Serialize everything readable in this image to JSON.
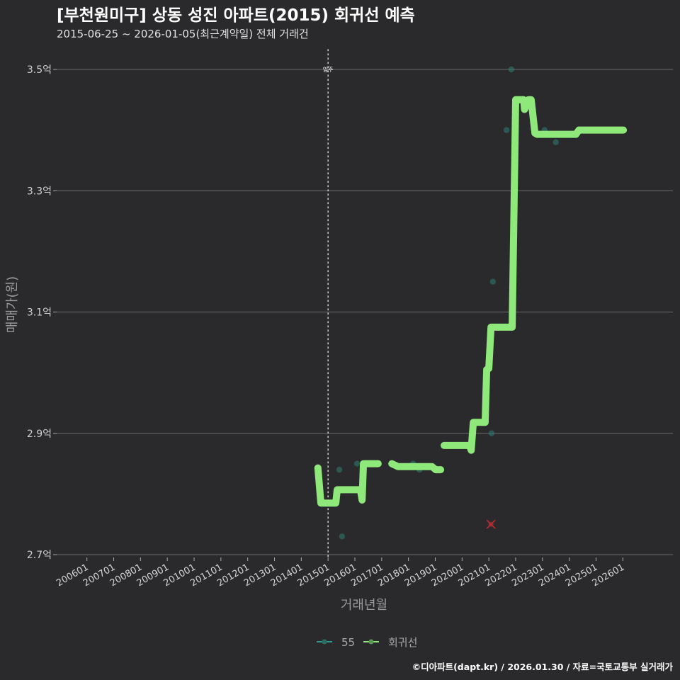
{
  "header": {
    "title": "[부천원미구] 상동 성진 아파트(2015) 회귀선 예측",
    "subtitle": "2015-06-25 ~ 2026-01-05(최근계약일) 전체 거래건"
  },
  "axes": {
    "y_title": "매매가(원)",
    "x_title": "거래년월",
    "y_ticks": [
      {
        "label": "3.5억",
        "value": 3.5
      },
      {
        "label": "3.3억",
        "value": 3.3
      },
      {
        "label": "3.1억",
        "value": 3.1
      },
      {
        "label": "2.9억",
        "value": 2.9
      },
      {
        "label": "2.7억",
        "value": 2.7
      }
    ],
    "x_ticks": [
      "200601",
      "200701",
      "200801",
      "200901",
      "201001",
      "201101",
      "201201",
      "201301",
      "201401",
      "201501",
      "201601",
      "201701",
      "201801",
      "201901",
      "202001",
      "202101",
      "202201",
      "202301",
      "202401",
      "202501",
      "202601"
    ]
  },
  "annotation": {
    "label": "입주",
    "x_year": 2015.0
  },
  "legend": {
    "items": [
      {
        "label": "55",
        "color": "#2f9a90"
      },
      {
        "label": "회귀선",
        "color": "#8ee87a"
      }
    ]
  },
  "caption": "©디아파트(dapt.kr) / 2026.01.30 / 자료=국토교통부 실거래가",
  "colors": {
    "background": "#2a2a2c",
    "regression": "#8ee87a",
    "points": "#2e7d74",
    "outlier": "#c0282d"
  },
  "chart_data": {
    "type": "line",
    "title": "[부천원미구] 상동 성진 아파트(2015) 회귀선 예측",
    "subtitle": "2015-06-25 ~ 2026-01-05(최근계약일) 전체 거래건",
    "xlabel": "거래년월",
    "ylabel": "매매가(원)",
    "xlim": [
      2006.0,
      2026.0
    ],
    "ylim": [
      2.7,
      3.5
    ],
    "y_unit": "억",
    "grid": true,
    "legend_position": "bottom",
    "series": [
      {
        "name": "55",
        "kind": "scatter",
        "points": [
          {
            "x": 2015.42,
            "y": 2.84
          },
          {
            "x": 2015.52,
            "y": 2.73
          },
          {
            "x": 2016.08,
            "y": 2.85
          },
          {
            "x": 2018.17,
            "y": 2.85
          },
          {
            "x": 2018.41,
            "y": 2.84
          },
          {
            "x": 2021.1,
            "y": 2.9
          },
          {
            "x": 2021.15,
            "y": 3.15
          },
          {
            "x": 2021.66,
            "y": 3.4
          },
          {
            "x": 2021.84,
            "y": 3.5
          },
          {
            "x": 2023.08,
            "y": 3.4
          },
          {
            "x": 2023.5,
            "y": 3.38
          }
        ]
      },
      {
        "name": "회귀선",
        "kind": "line",
        "segments": [
          [
            {
              "x": 2014.62,
              "y": 2.843
            },
            {
              "x": 2014.73,
              "y": 2.785
            },
            {
              "x": 2015.29,
              "y": 2.785
            },
            {
              "x": 2015.34,
              "y": 2.807
            },
            {
              "x": 2016.21,
              "y": 2.807
            },
            {
              "x": 2016.27,
              "y": 2.79
            },
            {
              "x": 2016.32,
              "y": 2.85
            },
            {
              "x": 2016.87,
              "y": 2.85
            }
          ],
          [
            {
              "x": 2017.38,
              "y": 2.85
            },
            {
              "x": 2017.61,
              "y": 2.845
            },
            {
              "x": 2018.88,
              "y": 2.845
            },
            {
              "x": 2019.02,
              "y": 2.84
            },
            {
              "x": 2019.2,
              "y": 2.84
            }
          ],
          [
            {
              "x": 2019.33,
              "y": 2.88
            },
            {
              "x": 2020.28,
              "y": 2.88
            },
            {
              "x": 2020.34,
              "y": 2.872
            },
            {
              "x": 2020.42,
              "y": 2.918
            },
            {
              "x": 2020.86,
              "y": 2.918
            },
            {
              "x": 2020.92,
              "y": 3.005
            },
            {
              "x": 2021.0,
              "y": 3.007
            },
            {
              "x": 2021.08,
              "y": 3.075
            },
            {
              "x": 2021.87,
              "y": 3.075
            },
            {
              "x": 2022.0,
              "y": 3.45
            },
            {
              "x": 2022.3,
              "y": 3.45
            },
            {
              "x": 2022.33,
              "y": 3.434
            },
            {
              "x": 2022.48,
              "y": 3.45
            },
            {
              "x": 2022.58,
              "y": 3.45
            },
            {
              "x": 2022.72,
              "y": 3.395
            },
            {
              "x": 2022.8,
              "y": 3.393
            },
            {
              "x": 2024.25,
              "y": 3.393
            },
            {
              "x": 2024.36,
              "y": 3.4
            },
            {
              "x": 2026.02,
              "y": 3.4
            }
          ]
        ]
      },
      {
        "name": "outlier",
        "kind": "marker-x",
        "points": [
          {
            "x": 2021.08,
            "y": 2.75
          }
        ]
      }
    ]
  }
}
